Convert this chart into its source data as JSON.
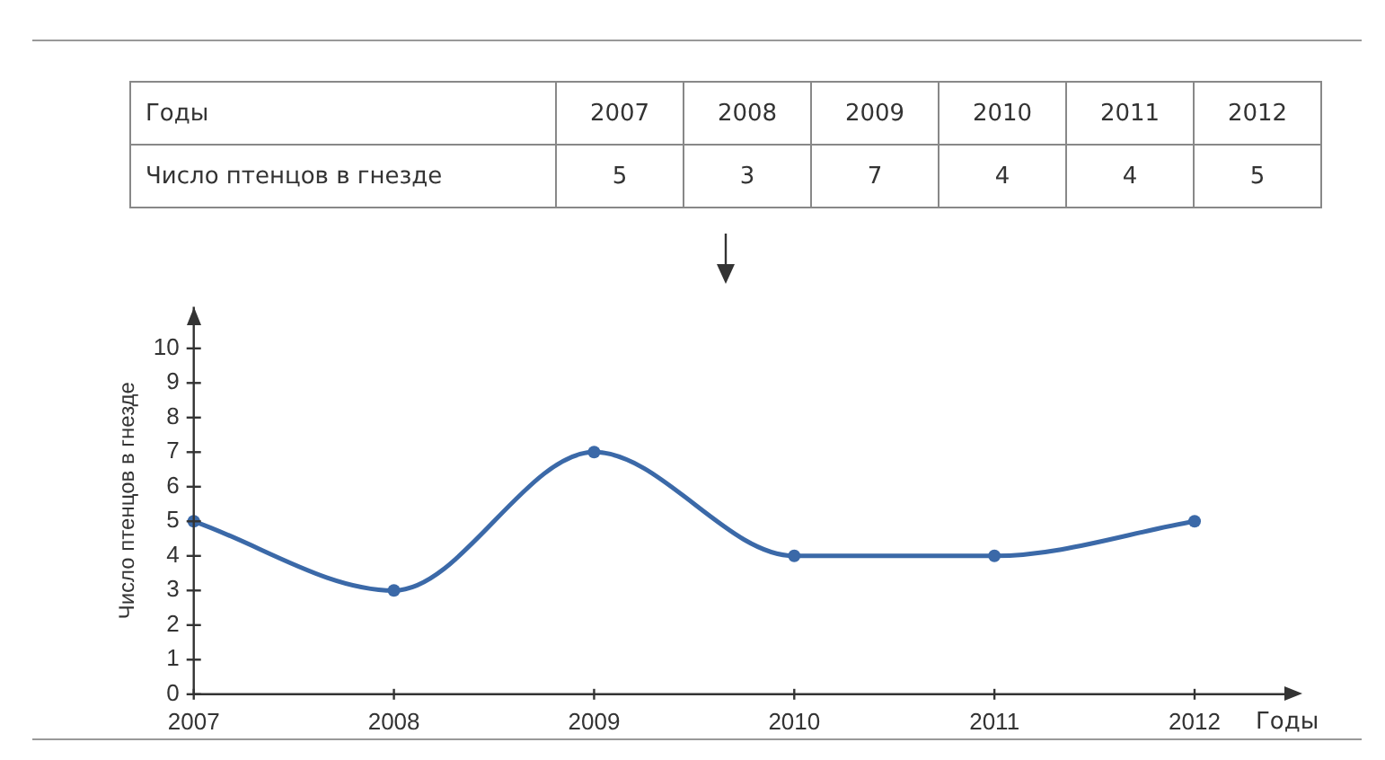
{
  "chart_data": {
    "type": "line",
    "xlabel": "Годы",
    "ylabel": "Число птенцов в гнезде",
    "categories": [
      "2007",
      "2008",
      "2009",
      "2010",
      "2011",
      "2012"
    ],
    "series": [
      {
        "color": "#3b69a8",
        "values": [
          5,
          3,
          7,
          4,
          4,
          5
        ]
      }
    ],
    "ylim": [
      0,
      11.2
    ],
    "yticks": [
      0,
      1,
      2,
      3,
      4,
      5,
      6,
      7,
      8,
      9,
      10
    ],
    "grid": false,
    "legend": false,
    "marker": "circle",
    "line_style": "solid",
    "value_labels": [
      "5",
      "3",
      "7",
      "4",
      "4",
      "5"
    ]
  }
}
